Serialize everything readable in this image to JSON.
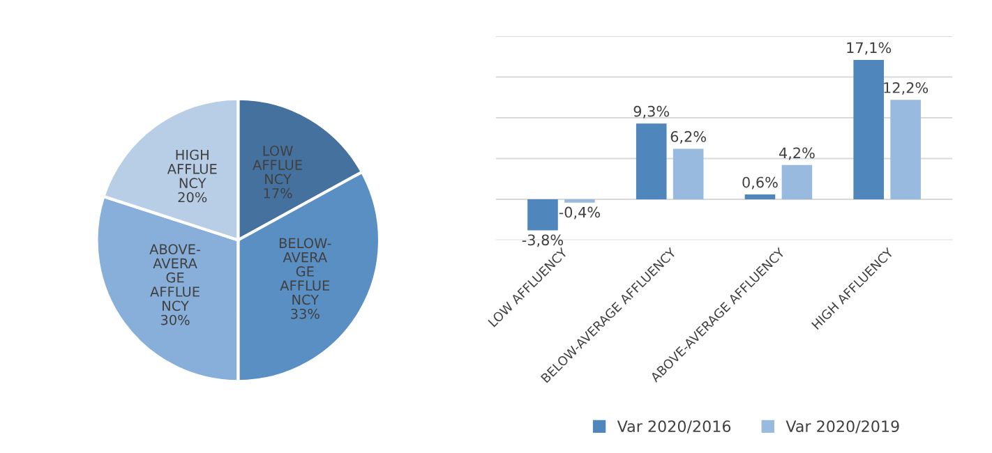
{
  "chart_data": [
    {
      "type": "pie",
      "categories": [
        "LOW\nAFFLUE\nNCY",
        "BELOW-\nAVERA\nGE\nAFFLUE\nNCY",
        "ABOVE-\nAVERA\nGE\nAFFLUE\nNCY",
        "HIGH\nAFFLUE\nNCY"
      ],
      "values": [
        17,
        33,
        30,
        20
      ],
      "value_labels": [
        "17%",
        "33%",
        "30%",
        "20%"
      ],
      "colors": [
        "#44719e",
        "#5a8fc3",
        "#88afd9",
        "#b8cde6"
      ]
    },
    {
      "type": "bar",
      "categories": [
        "LOW AFFLUENCY",
        "BELOW-AVERAGE AFFLUENCY",
        "ABOVE-AVERAGE AFFLUENCY",
        "HIGH AFFLUENCY"
      ],
      "ylim": [
        -5,
        20
      ],
      "yticks": [
        {
          "value": -5,
          "label": null
        },
        {
          "value": 0,
          "label": null
        },
        {
          "value": 5,
          "label": null
        },
        {
          "value": 10,
          "label": null
        },
        {
          "value": 15,
          "label": null
        },
        {
          "value": 20,
          "label": null
        }
      ],
      "tick_labels": "x",
      "grid": "y",
      "legend": "bottom",
      "series": [
        {
          "name": "Var 2020/2016",
          "color": "#4f86bb",
          "values": [
            -3.8,
            9.3,
            0.6,
            17.1
          ],
          "value_labels": [
            "-3,8%",
            "9,3%",
            "0,6%",
            "17,1%"
          ]
        },
        {
          "name": "Var 2020/2019",
          "color": "#98bade",
          "values": [
            -0.4,
            6.2,
            4.2,
            12.2
          ],
          "value_labels": [
            "-0,4%",
            "6,2%",
            "4,2%",
            "12,2%"
          ]
        }
      ]
    }
  ]
}
